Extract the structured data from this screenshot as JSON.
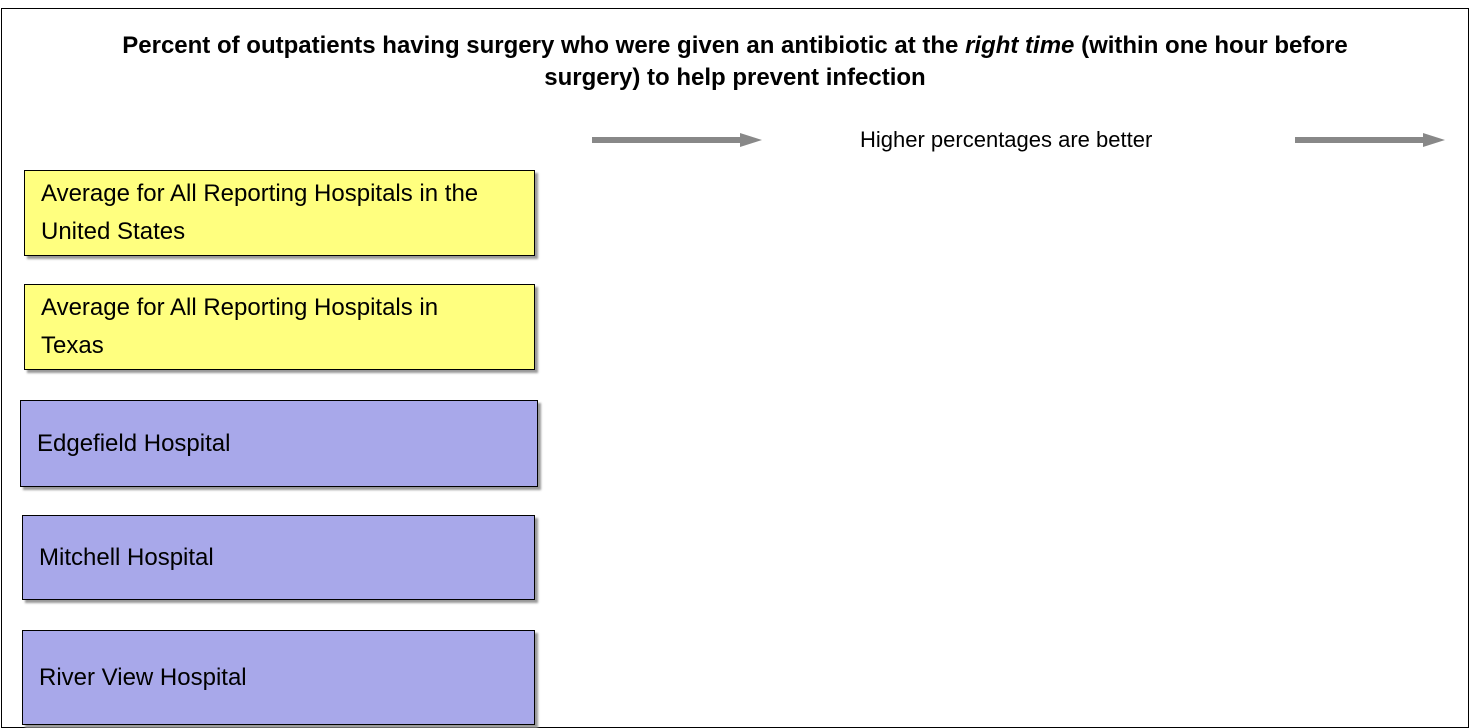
{
  "title_parts": [
    "Percent of outpatients having surgery who were given an antibiotic at the ",
    "right time",
    " (within one hour before surgery) to help prevent infection"
  ],
  "note": "Higher percentages are better",
  "boxes": [
    {
      "label": "Average for All Reporting Hospitals in the United States",
      "kind": "average"
    },
    {
      "label": "Average for All Reporting Hospitals in Texas",
      "kind": "average"
    },
    {
      "label": "Edgefield Hospital",
      "kind": "hospital"
    },
    {
      "label": "Mitchell Hospital",
      "kind": "hospital"
    },
    {
      "label": "River View Hospital",
      "kind": "hospital"
    }
  ]
}
